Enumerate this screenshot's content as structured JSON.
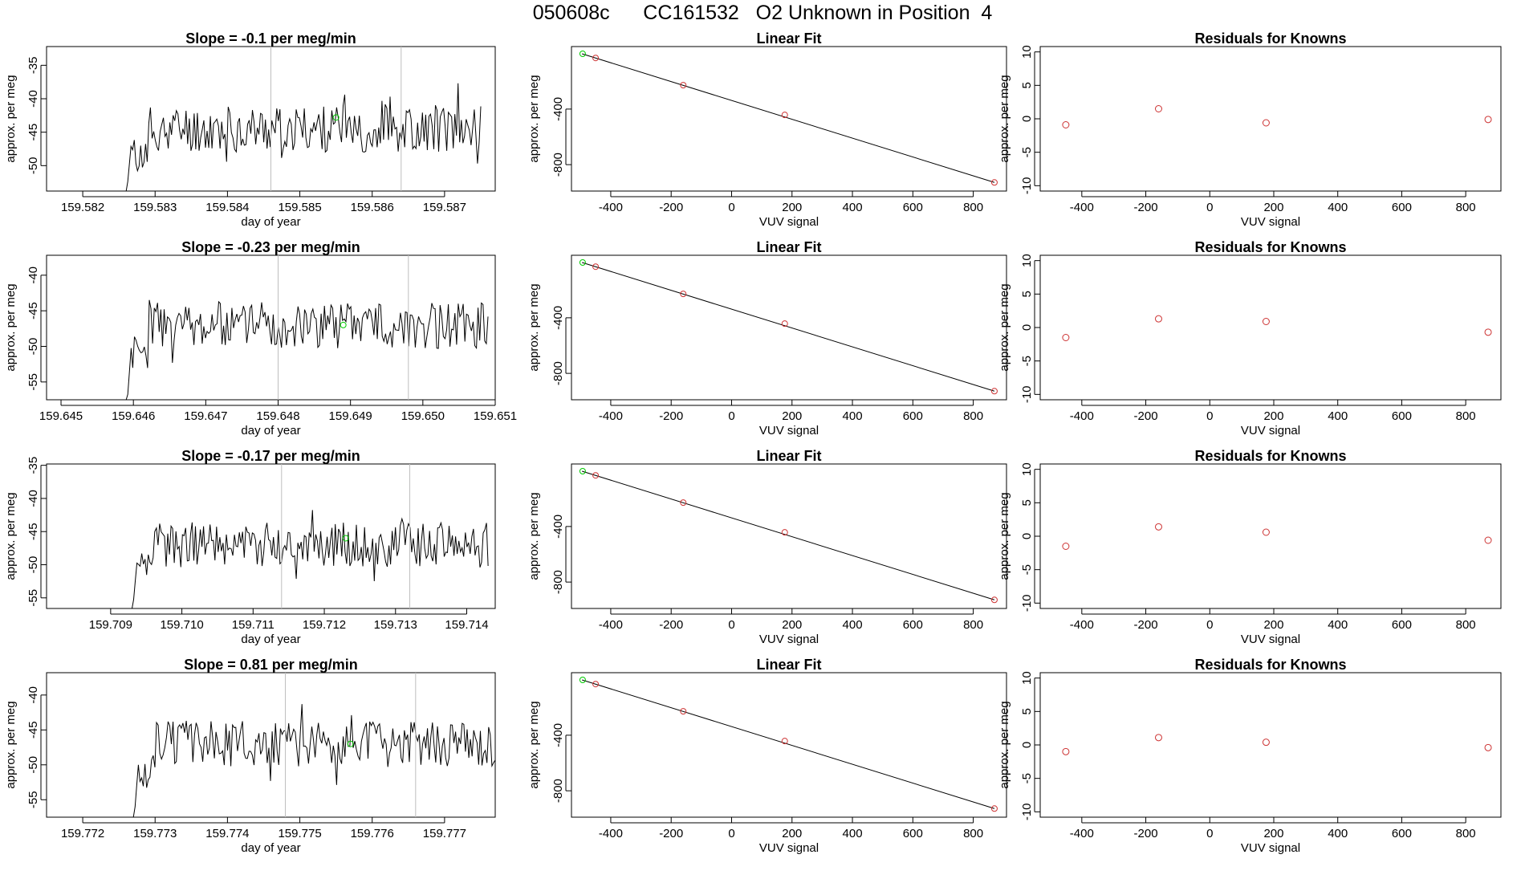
{
  "figure": {
    "title": "050608c      CC161532   O2 Unknown in Position  4"
  },
  "chart_data": [
    {
      "panel": "timeseries",
      "row": 0,
      "type": "line",
      "title": "Slope =  -0.1  per meg/min",
      "xlabel": "day of year",
      "ylabel": "approx. per meg",
      "xlim": [
        159.5815,
        159.5877
      ],
      "ylim": [
        -53.8,
        -32.2
      ],
      "xticks": [
        159.582,
        159.583,
        159.584,
        159.585,
        159.586,
        159.587
      ],
      "xtick_labels": [
        "159.582",
        "159.583",
        "159.584",
        "159.585",
        "159.586",
        "159.587"
      ],
      "yticks": [
        -50,
        -45,
        -40,
        -35
      ],
      "ytick_labels": [
        "-50",
        "-45",
        "-40",
        "-35"
      ],
      "start_x": 159.5826,
      "end_x": 159.5875,
      "start_value": -55,
      "mean": -44.5,
      "amp": 3.2,
      "seed": 11,
      "vlines": [
        159.5846,
        159.5864
      ],
      "marker": {
        "x": 159.5855,
        "y": -42.8,
        "color": "#00cc00"
      }
    },
    {
      "panel": "fit",
      "row": 0,
      "type": "scatter",
      "title": "Linear Fit",
      "xlabel": "VUV signal",
      "ylabel": "approx. per meg",
      "xlim": [
        -530,
        910
      ],
      "ylim": [
        -990,
        50
      ],
      "xticks": [
        -400,
        -200,
        0,
        200,
        400,
        600,
        800
      ],
      "xtick_labels": [
        "-400",
        "-200",
        "0",
        "200",
        "400",
        "600",
        "800"
      ],
      "yticks": [
        -800,
        -400
      ],
      "ytick_labels": [
        "-800",
        "-400"
      ],
      "line": {
        "x": [
          -495,
          870
        ],
        "y": [
          -2,
          -928
        ]
      },
      "points": [
        {
          "x": -450,
          "y": -32
        },
        {
          "x": -160,
          "y": -228
        },
        {
          "x": 176,
          "y": -442
        },
        {
          "x": 870,
          "y": -928
        }
      ],
      "unknown": {
        "x": -493,
        "y": -2
      }
    },
    {
      "panel": "residuals",
      "row": 0,
      "type": "scatter",
      "title": "Residuals for Knowns",
      "xlabel": "VUV signal",
      "ylabel": "approx. per meg",
      "xlim": [
        -530,
        910
      ],
      "ylim": [
        -10.8,
        10.8
      ],
      "xticks": [
        -400,
        -200,
        0,
        200,
        400,
        600,
        800
      ],
      "xtick_labels": [
        "-400",
        "-200",
        "0",
        "200",
        "400",
        "600",
        "800"
      ],
      "yticks": [
        -10,
        -5,
        0,
        5,
        10
      ],
      "ytick_labels": [
        "-10",
        "-5",
        "0",
        "5",
        "10"
      ],
      "points": [
        {
          "x": -450,
          "y": -0.9
        },
        {
          "x": -160,
          "y": 1.5
        },
        {
          "x": 176,
          "y": -0.6
        },
        {
          "x": 870,
          "y": -0.1
        }
      ]
    },
    {
      "panel": "timeseries",
      "row": 1,
      "type": "line",
      "title": "Slope =  -0.23  per meg/min",
      "xlabel": "day of year",
      "ylabel": "approx. per meg",
      "xlim": [
        159.6448,
        159.651
      ],
      "ylim": [
        -57.5,
        -37.2
      ],
      "xticks": [
        159.645,
        159.646,
        159.647,
        159.648,
        159.649,
        159.65,
        159.651
      ],
      "xtick_labels": [
        "159.645",
        "159.646",
        "159.647",
        "159.648",
        "159.649",
        "159.650",
        "159.651"
      ],
      "yticks": [
        -55,
        -50,
        -45,
        -40
      ],
      "ytick_labels": [
        "-55",
        "-50",
        "-45",
        "-40"
      ],
      "start_x": 159.6459,
      "end_x": 159.6509,
      "start_value": -60,
      "mean": -47,
      "amp": 3.0,
      "seed": 23,
      "vlines": [
        159.648,
        159.6498
      ],
      "marker": {
        "x": 159.6489,
        "y": -47.0,
        "color": "#00cc00"
      }
    },
    {
      "panel": "fit",
      "row": 1,
      "type": "scatter",
      "title": "Linear Fit",
      "xlabel": "VUV signal",
      "ylabel": "approx. per meg",
      "xlim": [
        -530,
        910
      ],
      "ylim": [
        -990,
        50
      ],
      "xticks": [
        -400,
        -200,
        0,
        200,
        400,
        600,
        800
      ],
      "xtick_labels": [
        "-400",
        "-200",
        "0",
        "200",
        "400",
        "600",
        "800"
      ],
      "yticks": [
        -800,
        -400
      ],
      "ytick_labels": [
        "-800",
        "-400"
      ],
      "line": {
        "x": [
          -495,
          870
        ],
        "y": [
          -2,
          -928
        ]
      },
      "points": [
        {
          "x": -450,
          "y": -32
        },
        {
          "x": -160,
          "y": -228
        },
        {
          "x": 176,
          "y": -442
        },
        {
          "x": 870,
          "y": -928
        }
      ],
      "unknown": {
        "x": -493,
        "y": -2
      }
    },
    {
      "panel": "residuals",
      "row": 1,
      "type": "scatter",
      "title": "Residuals for Knowns",
      "xlabel": "VUV signal",
      "ylabel": "approx. per meg",
      "xlim": [
        -530,
        910
      ],
      "ylim": [
        -10.8,
        10.8
      ],
      "xticks": [
        -400,
        -200,
        0,
        200,
        400,
        600,
        800
      ],
      "xtick_labels": [
        "-400",
        "-200",
        "0",
        "200",
        "400",
        "600",
        "800"
      ],
      "yticks": [
        -10,
        -5,
        0,
        5,
        10
      ],
      "ytick_labels": [
        "-10",
        "-5",
        "0",
        "5",
        "10"
      ],
      "points": [
        {
          "x": -450,
          "y": -1.5
        },
        {
          "x": -160,
          "y": 1.3
        },
        {
          "x": 176,
          "y": 0.9
        },
        {
          "x": 870,
          "y": -0.7
        }
      ]
    },
    {
      "panel": "timeseries",
      "row": 2,
      "type": "line",
      "title": "Slope =  -0.17  per meg/min",
      "xlabel": "day of year",
      "ylabel": "approx. per meg",
      "xlim": [
        159.7081,
        159.7144
      ],
      "ylim": [
        -56.6,
        -34.8
      ],
      "xticks": [
        159.709,
        159.71,
        159.711,
        159.712,
        159.713,
        159.714
      ],
      "xtick_labels": [
        "159.709",
        "159.710",
        "159.711",
        "159.712",
        "159.713",
        "159.714"
      ],
      "yticks": [
        -55,
        -50,
        -45,
        -40,
        -35
      ],
      "ytick_labels": [
        "-55",
        "-50",
        "-45",
        "-40",
        "-35"
      ],
      "start_x": 159.7093,
      "end_x": 159.7143,
      "start_value": -58,
      "mean": -47,
      "amp": 3.1,
      "seed": 37,
      "vlines": [
        159.7114,
        159.7132
      ],
      "marker": {
        "x": 159.7123,
        "y": -46.0,
        "color": "#00cc00"
      }
    },
    {
      "panel": "fit",
      "row": 2,
      "type": "scatter",
      "title": "Linear Fit",
      "xlabel": "VUV signal",
      "ylabel": "approx. per meg",
      "xlim": [
        -530,
        910
      ],
      "ylim": [
        -990,
        50
      ],
      "xticks": [
        -400,
        -200,
        0,
        200,
        400,
        600,
        800
      ],
      "xtick_labels": [
        "-400",
        "-200",
        "0",
        "200",
        "400",
        "600",
        "800"
      ],
      "yticks": [
        -800,
        -400
      ],
      "ytick_labels": [
        "-800",
        "-400"
      ],
      "line": {
        "x": [
          -495,
          870
        ],
        "y": [
          -2,
          -928
        ]
      },
      "points": [
        {
          "x": -450,
          "y": -32
        },
        {
          "x": -160,
          "y": -228
        },
        {
          "x": 176,
          "y": -442
        },
        {
          "x": 870,
          "y": -928
        }
      ],
      "unknown": {
        "x": -493,
        "y": -2
      }
    },
    {
      "panel": "residuals",
      "row": 2,
      "type": "scatter",
      "title": "Residuals for Knowns",
      "xlabel": "VUV signal",
      "ylabel": "approx. per meg",
      "xlim": [
        -530,
        910
      ],
      "ylim": [
        -10.8,
        10.8
      ],
      "xticks": [
        -400,
        -200,
        0,
        200,
        400,
        600,
        800
      ],
      "xtick_labels": [
        "-400",
        "-200",
        "0",
        "200",
        "400",
        "600",
        "800"
      ],
      "yticks": [
        -10,
        -5,
        0,
        5,
        10
      ],
      "ytick_labels": [
        "-10",
        "-5",
        "0",
        "5",
        "10"
      ],
      "points": [
        {
          "x": -450,
          "y": -1.5
        },
        {
          "x": -160,
          "y": 1.4
        },
        {
          "x": 176,
          "y": 0.6
        },
        {
          "x": 870,
          "y": -0.6
        }
      ]
    },
    {
      "panel": "timeseries",
      "row": 3,
      "type": "line",
      "title": "Slope =  0.81  per meg/min",
      "xlabel": "day of year",
      "ylabel": "approx. per meg",
      "xlim": [
        159.7715,
        159.7777
      ],
      "ylim": [
        -57.5,
        -36.8
      ],
      "xticks": [
        159.772,
        159.773,
        159.774,
        159.775,
        159.776,
        159.777
      ],
      "xtick_labels": [
        "159.772",
        "159.773",
        "159.774",
        "159.775",
        "159.776",
        "159.777"
      ],
      "yticks": [
        -55,
        -50,
        -45,
        -40
      ],
      "ytick_labels": [
        "-55",
        "-50",
        "-45",
        "-40"
      ],
      "start_x": 159.7727,
      "end_x": 159.7777,
      "start_value": -59,
      "mean": -47,
      "amp": 3.0,
      "seed": 51,
      "vlines": [
        159.7748,
        159.7766
      ],
      "marker": {
        "x": 159.7757,
        "y": -47.0,
        "color": "#00cc00"
      }
    },
    {
      "panel": "fit",
      "row": 3,
      "type": "scatter",
      "title": "Linear Fit",
      "xlabel": "VUV signal",
      "ylabel": "approx. per meg",
      "xlim": [
        -530,
        910
      ],
      "ylim": [
        -990,
        50
      ],
      "xticks": [
        -400,
        -200,
        0,
        200,
        400,
        600,
        800
      ],
      "xtick_labels": [
        "-400",
        "-200",
        "0",
        "200",
        "400",
        "600",
        "800"
      ],
      "yticks": [
        -800,
        -400
      ],
      "ytick_labels": [
        "-800",
        "-400"
      ],
      "line": {
        "x": [
          -495,
          870
        ],
        "y": [
          -2,
          -928
        ]
      },
      "points": [
        {
          "x": -450,
          "y": -32
        },
        {
          "x": -160,
          "y": -228
        },
        {
          "x": 176,
          "y": -442
        },
        {
          "x": 870,
          "y": -928
        }
      ],
      "unknown": {
        "x": -493,
        "y": -2
      }
    },
    {
      "panel": "residuals",
      "row": 3,
      "type": "scatter",
      "title": "Residuals for Knowns",
      "xlabel": "VUV signal",
      "ylabel": "approx. per meg",
      "xlim": [
        -530,
        910
      ],
      "ylim": [
        -10.8,
        10.8
      ],
      "xticks": [
        -400,
        -200,
        0,
        200,
        400,
        600,
        800
      ],
      "xtick_labels": [
        "-400",
        "-200",
        "0",
        "200",
        "400",
        "600",
        "800"
      ],
      "yticks": [
        -10,
        -5,
        0,
        5,
        10
      ],
      "ytick_labels": [
        "-10",
        "-5",
        "0",
        "5",
        "10"
      ],
      "points": [
        {
          "x": -450,
          "y": -1.0
        },
        {
          "x": -160,
          "y": 1.1
        },
        {
          "x": 176,
          "y": 0.4
        },
        {
          "x": 870,
          "y": -0.4
        }
      ]
    }
  ],
  "colors": {
    "known_point": "#cd3333",
    "unknown_point": "#00cc00",
    "line": "#000000",
    "vline": "#bebebe"
  }
}
